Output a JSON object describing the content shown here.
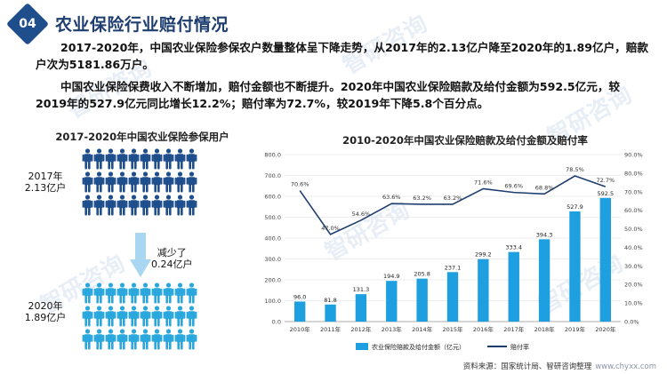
{
  "header": {
    "section_number": "04",
    "title": "农业保险行业赔付情况"
  },
  "paragraphs": {
    "p1": "2017-2020年，中国农业保险参保农户数量整体呈下降走势，从2017年的2.13亿户降至2020年的1.89亿户，赔款户次为5181.86万户。",
    "p2": "中国农业保险保费收入不断增加，赔付金额也不断提升。2020年中国农业保险赔款及给付金额为592.5亿元，较2019年的527.9亿元同比增长12.2%；赔付率为72.7%，较2019年下降5.8个百分点。"
  },
  "left_panel": {
    "title": "2017-2020年中国农业保险参保用户",
    "year_2017": "2017年",
    "value_2017": "2.13亿户",
    "year_2020": "2020年",
    "value_2020": "1.89亿户",
    "reduce_line1": "减少了",
    "reduce_line2": "0.24亿户",
    "colors": {
      "dark": "#1f4e8c",
      "light": "#2aa7dc",
      "arrow": "#a9d6f0"
    }
  },
  "watermark_text": "智研咨询",
  "chart_data": {
    "type": "bar",
    "title": "2010-2020年中国农业保险赔款及给付金额及赔付率",
    "categories": [
      "2010年",
      "2011年",
      "2012年",
      "2013年",
      "2014年",
      "2015年",
      "2016年",
      "2017年",
      "2018年",
      "2019年",
      "2020年"
    ],
    "series": [
      {
        "name": "农业保险赔款及给付金额（亿元）",
        "type": "bar",
        "axis": "left",
        "color": "#1e9fe0",
        "values": [
          96.0,
          81.8,
          131.3,
          194.9,
          205.8,
          237.1,
          299.2,
          333.4,
          394.3,
          527.9,
          592.5
        ],
        "labels": [
          "96.0",
          "81.8",
          "131.3",
          "194.9",
          "205.8",
          "237.1",
          "299.2",
          "333.4",
          "394.3",
          "527.9",
          "592.5"
        ]
      },
      {
        "name": "赔付率",
        "type": "line",
        "axis": "right",
        "color": "#1f3e70",
        "values": [
          70.6,
          47.0,
          54.6,
          63.6,
          63.2,
          63.2,
          71.6,
          69.6,
          68.8,
          78.5,
          72.7
        ],
        "labels": [
          "70.6%",
          "47.0%",
          "54.6%",
          "63.6%",
          "63.2%",
          "63.2%",
          "71.6%",
          "69.6%",
          "68.8%",
          "78.5%",
          "72.7%"
        ]
      }
    ],
    "left_axis": {
      "min": 0,
      "max": 800,
      "step": 100,
      "tick_labels": [
        "0.0",
        "100.0",
        "200.0",
        "300.0",
        "400.0",
        "500.0",
        "600.0",
        "700.0",
        "800.0"
      ]
    },
    "right_axis": {
      "min": 0,
      "max": 90,
      "step": 10,
      "tick_labels": [
        "0.0%",
        "10.0%",
        "20.0%",
        "30.0%",
        "40.0%",
        "50.0%",
        "60.0%",
        "70.0%",
        "80.0%",
        "90.0%"
      ]
    },
    "legend_position": "bottom",
    "grid": true
  },
  "footer": {
    "source": "资料来源：国家统计局、智研咨询整理",
    "site": "www.chyxx.com"
  }
}
